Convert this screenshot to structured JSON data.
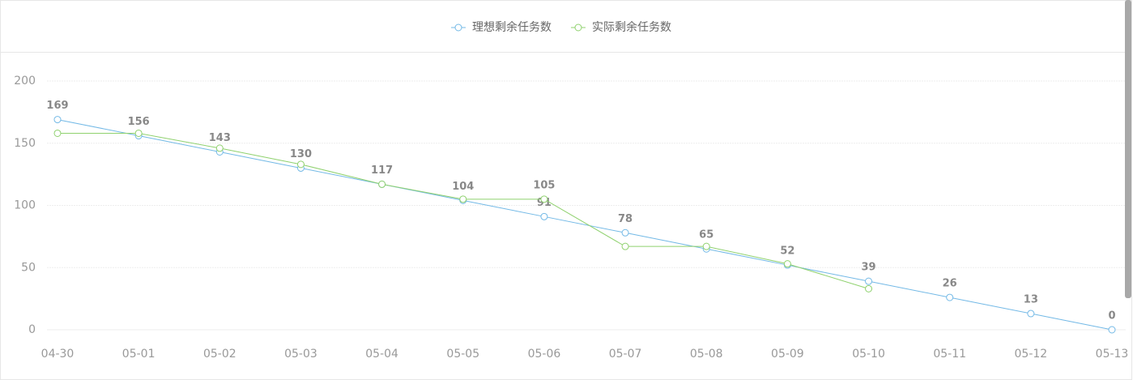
{
  "chart_data": {
    "type": "line",
    "categories": [
      "04-30",
      "05-01",
      "05-02",
      "05-03",
      "05-04",
      "05-05",
      "05-06",
      "05-07",
      "05-08",
      "05-09",
      "05-10",
      "05-11",
      "05-12",
      "05-13"
    ],
    "series": [
      {
        "name": "理想剩余任务数",
        "color": "#73b9e6",
        "values": [
          169,
          156,
          143,
          130,
          117,
          104,
          91,
          78,
          65,
          52,
          39,
          26,
          13,
          0
        ]
      },
      {
        "name": "实际剩余任务数",
        "color": "#8fd16e",
        "values": [
          158,
          158,
          146,
          133,
          117,
          105,
          105,
          67,
          67,
          53,
          33,
          null,
          null,
          null
        ],
        "value_labels": [
          null,
          null,
          null,
          null,
          null,
          null,
          "105",
          null,
          null,
          null,
          null,
          null,
          null,
          null
        ]
      }
    ],
    "ylim": [
      0,
      200
    ],
    "yticks": [
      0,
      50,
      100,
      150,
      200
    ],
    "grid": true,
    "legend": "top"
  }
}
